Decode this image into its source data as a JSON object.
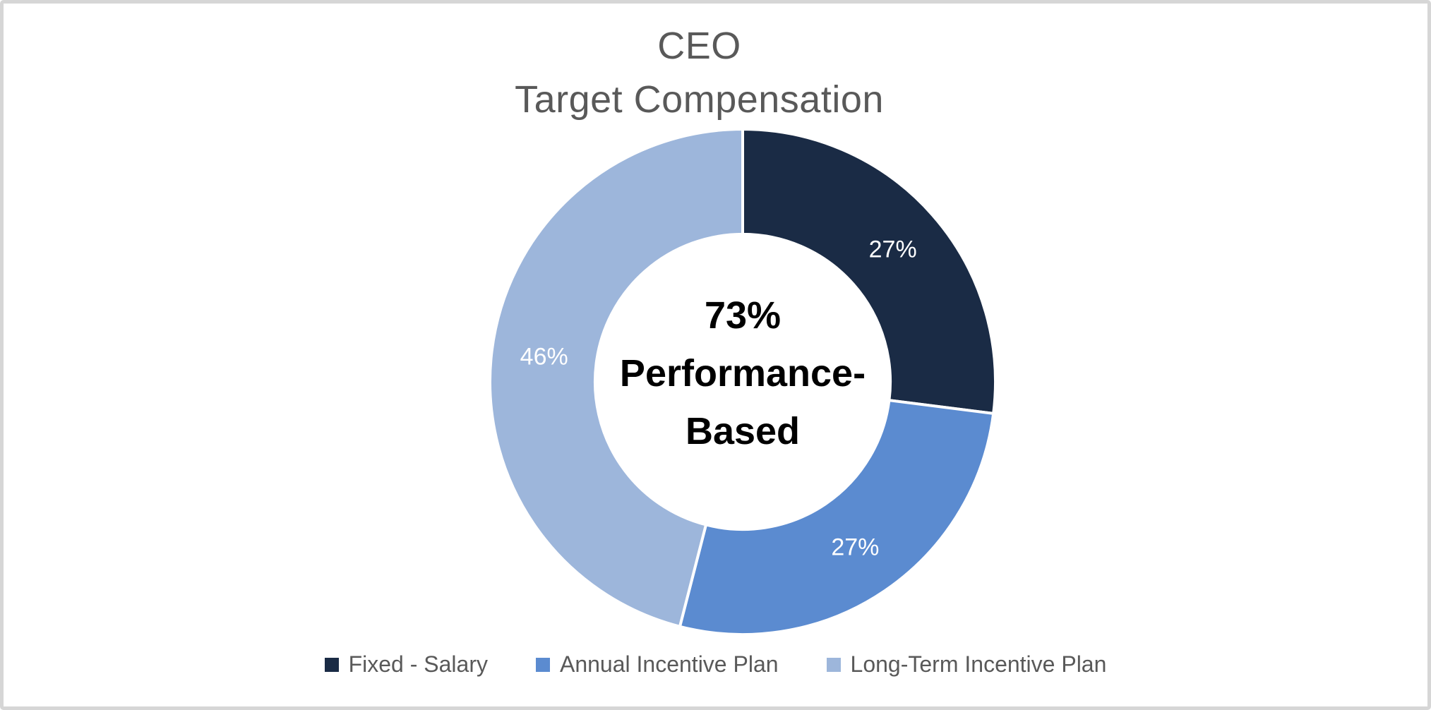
{
  "window": {
    "background": "#ffffff",
    "border_color": "#d6d6d6"
  },
  "chart_data": {
    "type": "pie",
    "subtype": "donut",
    "title_lines": [
      "CEO",
      "Target Compensation"
    ],
    "title": "CEO Target Compensation",
    "center_label_lines": [
      "73%",
      "Performance-",
      "Based"
    ],
    "slices": [
      {
        "label": "Fixed - Salary",
        "value": 27,
        "display": "27%",
        "color": "#1a2b45"
      },
      {
        "label": "Annual Incentive Plan",
        "value": 27,
        "display": "27%",
        "color": "#5b8bd0"
      },
      {
        "label": "Long-Term Incentive Plan",
        "value": 46,
        "display": "46%",
        "color": "#9db6db"
      }
    ],
    "start_angle_deg": 0,
    "direction": "clockwise",
    "hole_ratio": 0.584,
    "separator_color": "#ffffff",
    "label_color": "#ffffff",
    "label_font_size": 34,
    "title_color": "#595959",
    "legend_text_color": "#595959",
    "center_text_color": "#000000",
    "legend_position": "bottom",
    "grid": false
  }
}
